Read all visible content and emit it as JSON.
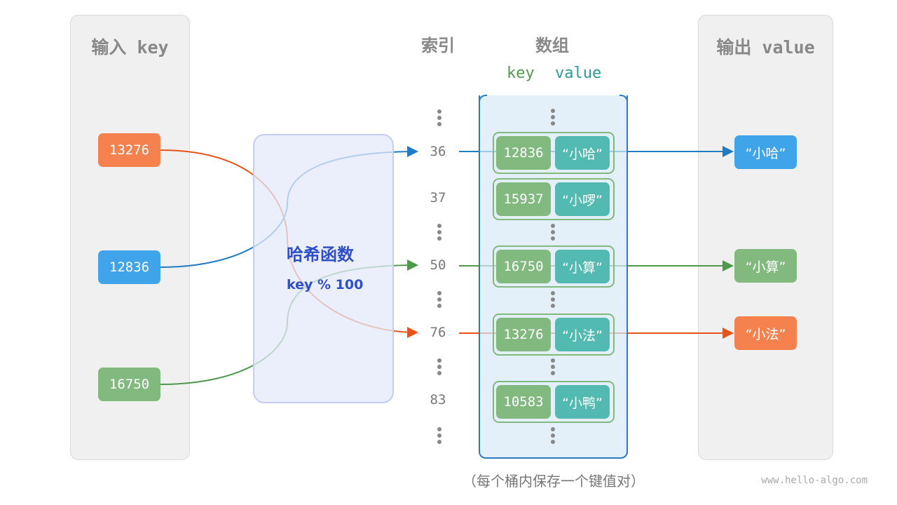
{
  "input_panel": {
    "title": "输入 key",
    "keys": [
      {
        "label": "13276",
        "color": "#f5814f"
      },
      {
        "label": "12836",
        "color": "#3fa4e9"
      },
      {
        "label": "16750",
        "color": "#82b97f"
      }
    ]
  },
  "hash_function": {
    "title": "哈希函数",
    "formula": "key % 100"
  },
  "headers": {
    "index": "索引",
    "array": "数组",
    "key": "key",
    "value": "value"
  },
  "indices": [
    "36",
    "37",
    "50",
    "76",
    "83"
  ],
  "buckets": [
    {
      "key": "12836",
      "value": "“小哈”"
    },
    {
      "key": "15937",
      "value": "“小啰”"
    },
    {
      "key": "16750",
      "value": "“小算”"
    },
    {
      "key": "13276",
      "value": "“小法”"
    },
    {
      "key": "10583",
      "value": "“小鸭”"
    }
  ],
  "output_panel": {
    "title": "输出 value",
    "values": [
      {
        "label": "“小哈”",
        "color": "#3fa4e9"
      },
      {
        "label": "“小算”",
        "color": "#82b97f"
      },
      {
        "label": "“小法”",
        "color": "#f5814f"
      }
    ]
  },
  "caption": "（每个桶内保存一个键值对）",
  "watermark": "www.hello-algo.com"
}
